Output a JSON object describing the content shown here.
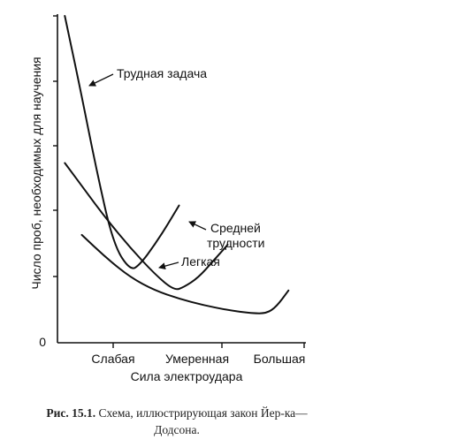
{
  "chart_data": {
    "type": "line",
    "xlabel": "Сила электроудара",
    "ylabel": "Число проб, необходимых для научения",
    "y_tick_labels": [
      "0"
    ],
    "x_tick_labels": [
      "Слабая",
      "Умеренная",
      "Большая"
    ],
    "x_range": [
      0,
      10
    ],
    "y_range": [
      0,
      10
    ],
    "grid": false,
    "series": [
      {
        "name": "Трудная задача",
        "x": [
          0.3,
          0.9,
          1.6,
          2.3,
          3.0,
          3.4,
          4.0,
          4.6,
          5.0
        ],
        "y": [
          10.0,
          7.9,
          5.3,
          3.0,
          2.2,
          2.4,
          3.0,
          3.7,
          4.2
        ]
      },
      {
        "name": "Средней трудности",
        "x": [
          0.3,
          1.1,
          2.0,
          3.0,
          4.0,
          4.8,
          5.2,
          5.8,
          6.4,
          7.0
        ],
        "y": [
          5.5,
          4.7,
          3.8,
          2.9,
          2.1,
          1.6,
          1.7,
          2.0,
          2.5,
          3.0
        ]
      },
      {
        "name": "Легкая",
        "x": [
          1.0,
          2.0,
          3.0,
          4.0,
          5.0,
          6.0,
          7.0,
          8.0,
          8.6,
          9.0,
          9.5
        ],
        "y": [
          3.3,
          2.6,
          2.0,
          1.6,
          1.35,
          1.15,
          1.0,
          0.9,
          0.9,
          1.1,
          1.6
        ]
      }
    ]
  },
  "annotations": {
    "hard": "Трудная задача",
    "medium_1": "Средней",
    "medium_2": "трудности",
    "easy": "Легкая"
  },
  "caption": {
    "label": "Рис. 15.1.",
    "text": " Схема, иллюстрирующая закон Йер-ка—Додсона."
  }
}
